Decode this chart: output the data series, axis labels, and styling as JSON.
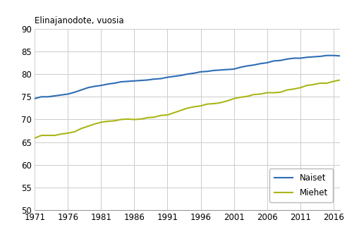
{
  "ylabel": "Elinajanodote, vuosia",
  "years": [
    1971,
    1972,
    1973,
    1974,
    1975,
    1976,
    1977,
    1978,
    1979,
    1980,
    1981,
    1982,
    1983,
    1984,
    1985,
    1986,
    1987,
    1988,
    1989,
    1990,
    1991,
    1992,
    1993,
    1994,
    1995,
    1996,
    1997,
    1998,
    1999,
    2000,
    2001,
    2002,
    2003,
    2004,
    2005,
    2006,
    2007,
    2008,
    2009,
    2010,
    2011,
    2012,
    2013,
    2014,
    2015,
    2016,
    2017
  ],
  "naiset": [
    74.6,
    75.0,
    75.0,
    75.2,
    75.4,
    75.6,
    76.0,
    76.5,
    77.0,
    77.3,
    77.5,
    77.8,
    78.0,
    78.3,
    78.4,
    78.5,
    78.6,
    78.7,
    78.9,
    79.0,
    79.3,
    79.5,
    79.7,
    80.0,
    80.2,
    80.5,
    80.6,
    80.8,
    80.9,
    81.0,
    81.1,
    81.5,
    81.8,
    82.0,
    82.3,
    82.5,
    82.9,
    83.0,
    83.3,
    83.5,
    83.5,
    83.7,
    83.8,
    83.9,
    84.1,
    84.1,
    84.0
  ],
  "miehet": [
    65.9,
    66.5,
    66.5,
    66.5,
    66.8,
    67.0,
    67.3,
    68.0,
    68.5,
    69.0,
    69.4,
    69.6,
    69.7,
    70.0,
    70.1,
    70.0,
    70.1,
    70.4,
    70.5,
    70.9,
    71.0,
    71.5,
    72.0,
    72.5,
    72.8,
    73.0,
    73.4,
    73.5,
    73.7,
    74.1,
    74.6,
    74.9,
    75.1,
    75.5,
    75.6,
    75.9,
    75.9,
    76.0,
    76.5,
    76.7,
    77.0,
    77.5,
    77.7,
    78.0,
    78.0,
    78.4,
    78.7
  ],
  "naiset_color": "#2d6db5",
  "miehet_color": "#aab618",
  "ylim": [
    50,
    90
  ],
  "xlim": [
    1971,
    2017
  ],
  "yticks": [
    50,
    55,
    60,
    65,
    70,
    75,
    80,
    85,
    90
  ],
  "xticks": [
    1971,
    1976,
    1981,
    1986,
    1991,
    1996,
    2001,
    2006,
    2011,
    2016
  ],
  "legend_naiset": "Naiset",
  "legend_miehet": "Miehet",
  "bg_color": "#ffffff",
  "grid_color": "#cccccc",
  "line_width": 1.5,
  "font_size_label": 8.5,
  "font_size_tick": 8.5
}
